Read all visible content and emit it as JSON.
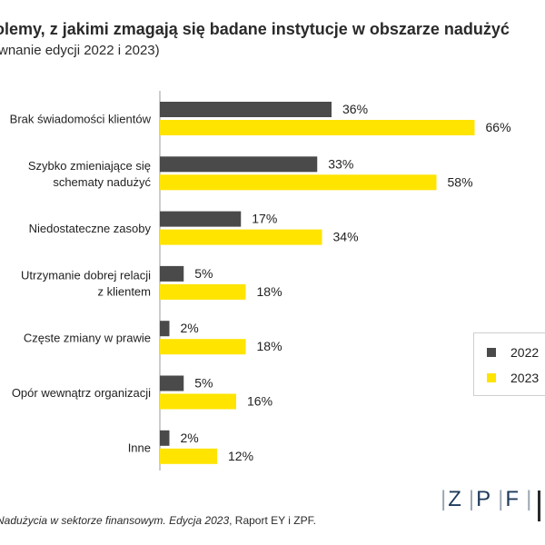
{
  "header": {
    "title": "olemy, z jakimi zmagają się badane instytucje w obszarze nadużyć",
    "subtitle": "wnanie edycji 2022 i 2023)"
  },
  "colors": {
    "series_2022": "#4a4a4a",
    "series_2023": "#ffe400",
    "axis": "#9a9a9a"
  },
  "chart_data": {
    "type": "bar",
    "orientation": "horizontal",
    "categories": [
      [
        "Brak świadomości klientów"
      ],
      [
        "Szybko zmieniające się",
        "schematy nadużyć"
      ],
      [
        "Niedostateczne zasoby"
      ],
      [
        "Utrzymanie dobrej relacji",
        "z klientem"
      ],
      [
        "Częste zmiany w prawie"
      ],
      [
        "Opór wewnątrz organizacji"
      ],
      [
        "Inne"
      ]
    ],
    "series": [
      {
        "name": "2022",
        "values": [
          36,
          33,
          17,
          5,
          2,
          5,
          2
        ],
        "labels": [
          "36%",
          "33%",
          "17%",
          "5%",
          "2%",
          "5%",
          "2%"
        ]
      },
      {
        "name": "2023",
        "values": [
          66,
          58,
          34,
          18,
          18,
          16,
          12
        ],
        "labels": [
          "66%",
          "58%",
          "34%",
          "18%",
          "18%",
          "16%",
          "12%"
        ]
      }
    ],
    "xlim": [
      0,
      100
    ],
    "unit": "%",
    "grid": false,
    "legend_position": "right"
  },
  "legend": {
    "item_2022": "2022",
    "item_2023": "2023"
  },
  "footer": {
    "source_italic": "Nadużycia w sektorze finansowym. Edycja 2023",
    "source_rest": ", Raport EY i ZPF."
  },
  "logo": {
    "z": "Z",
    "p": "P",
    "f": "F",
    "sep": "|"
  }
}
